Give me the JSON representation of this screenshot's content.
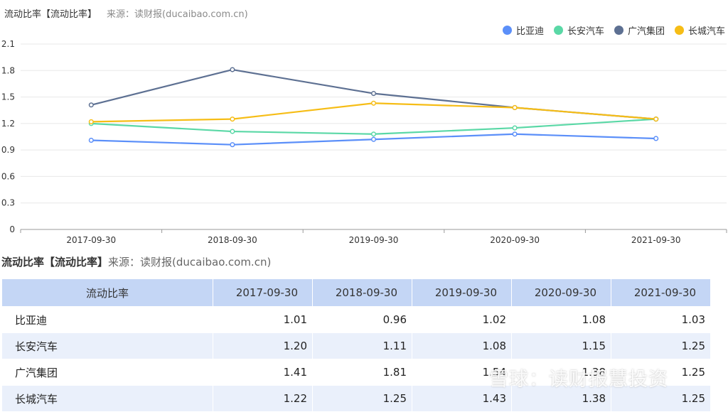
{
  "header": {
    "title": "流动比率【流动比率】",
    "source": "来源：读财报(ducaibao.com.cn)"
  },
  "chart_data": {
    "type": "line",
    "categories": [
      "2017-09-30",
      "2018-09-30",
      "2019-09-30",
      "2020-09-30",
      "2021-09-30"
    ],
    "ylim": [
      0,
      2.1
    ],
    "yticks": [
      "0",
      "0.3",
      "0.6",
      "0.9",
      "1.2",
      "1.5",
      "1.8",
      "2.1"
    ],
    "grid": true,
    "legend_position": "top-right",
    "series": [
      {
        "name": "比亚迪",
        "color": "#5b8ff9",
        "values": [
          1.01,
          0.96,
          1.02,
          1.08,
          1.03
        ]
      },
      {
        "name": "长安汽车",
        "color": "#5ad8a6",
        "values": [
          1.2,
          1.11,
          1.08,
          1.15,
          1.25
        ]
      },
      {
        "name": "广汽集团",
        "color": "#5d7092",
        "values": [
          1.41,
          1.81,
          1.54,
          1.38,
          1.25
        ]
      },
      {
        "name": "长城汽车",
        "color": "#f6bd16",
        "values": [
          1.22,
          1.25,
          1.43,
          1.38,
          1.25
        ]
      }
    ]
  },
  "table": {
    "title_bold": "流动比率【流动比率】",
    "title_source": "来源：读财报(ducaibao.com.cn)",
    "corner_header": "流动比率",
    "columns": [
      "2017-09-30",
      "2018-09-30",
      "2019-09-30",
      "2020-09-30",
      "2021-09-30"
    ],
    "rows": [
      {
        "name": "比亚迪",
        "values": [
          "1.01",
          "0.96",
          "1.02",
          "1.08",
          "1.03"
        ]
      },
      {
        "name": "长安汽车",
        "values": [
          "1.20",
          "1.11",
          "1.08",
          "1.15",
          "1.25"
        ]
      },
      {
        "name": "广汽集团",
        "values": [
          "1.41",
          "1.81",
          "1.54",
          "1.38",
          "1.25"
        ]
      },
      {
        "name": "长城汽车",
        "values": [
          "1.22",
          "1.25",
          "1.43",
          "1.38",
          "1.25"
        ]
      }
    ]
  },
  "watermark": "雪球：读财报慧投资"
}
